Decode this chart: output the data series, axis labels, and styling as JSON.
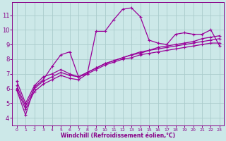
{
  "background_color": "#cce8e8",
  "grid_color": "#aacccc",
  "line_color": "#990099",
  "xlabel": "Windchill (Refroidissement éolien,°C)",
  "xlabel_color": "#880088",
  "tick_color": "#880088",
  "ylim": [
    3.5,
    11.9
  ],
  "xlim": [
    -0.5,
    23.5
  ],
  "yticks": [
    4,
    5,
    6,
    7,
    8,
    9,
    10,
    11
  ],
  "xticks": [
    0,
    1,
    2,
    3,
    4,
    5,
    6,
    7,
    8,
    9,
    10,
    11,
    12,
    13,
    14,
    15,
    16,
    17,
    18,
    19,
    20,
    21,
    22,
    23
  ],
  "series": [
    [
      5.9,
      4.2,
      6.1,
      6.6,
      7.5,
      8.3,
      8.5,
      6.8,
      7.0,
      9.9,
      9.9,
      10.7,
      11.4,
      11.5,
      10.9,
      9.3,
      9.1,
      9.0,
      9.7,
      9.8,
      9.7,
      9.7,
      10.0,
      8.9
    ],
    [
      6.5,
      5.0,
      6.2,
      6.8,
      7.0,
      7.3,
      7.0,
      6.8,
      7.1,
      7.4,
      7.7,
      7.9,
      8.1,
      8.3,
      8.5,
      8.6,
      8.8,
      8.9,
      9.0,
      9.1,
      9.2,
      9.4,
      9.5,
      9.6
    ],
    [
      6.2,
      4.8,
      6.0,
      6.5,
      6.8,
      7.1,
      6.9,
      6.8,
      7.1,
      7.4,
      7.7,
      7.9,
      8.1,
      8.3,
      8.4,
      8.6,
      8.7,
      8.8,
      8.9,
      9.0,
      9.1,
      9.2,
      9.3,
      9.4
    ],
    [
      6.0,
      4.6,
      5.8,
      6.3,
      6.6,
      6.9,
      6.7,
      6.6,
      7.0,
      7.3,
      7.6,
      7.8,
      8.0,
      8.1,
      8.3,
      8.4,
      8.5,
      8.6,
      8.7,
      8.8,
      8.9,
      9.0,
      9.1,
      9.1
    ]
  ]
}
